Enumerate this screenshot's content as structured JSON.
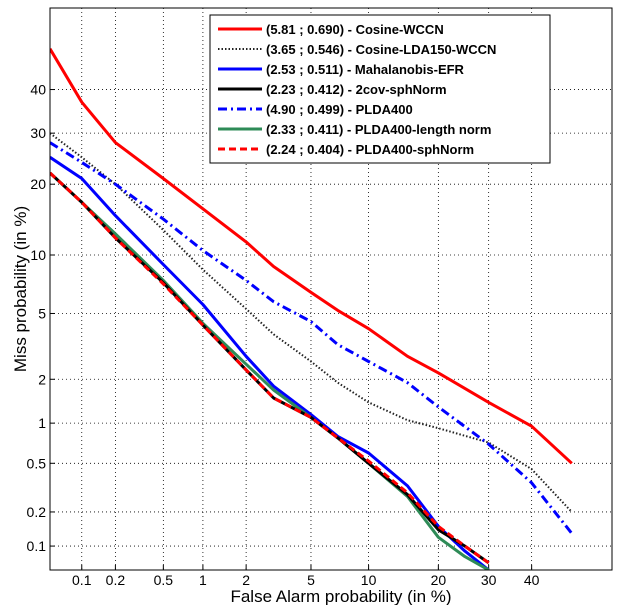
{
  "chart_data": {
    "type": "line",
    "xlabel": "False Alarm probability (in %)",
    "ylabel": "Miss probability (in %)",
    "x_scale": "probit",
    "y_scale": "probit",
    "xlim": [
      0.05,
      60
    ],
    "ylim": [
      0.06,
      60
    ],
    "x_ticks": [
      0.1,
      0.2,
      0.5,
      1,
      2,
      5,
      10,
      20,
      30,
      40
    ],
    "x_tick_labels": [
      "0.1",
      "0.2",
      "0.5",
      "1",
      "2",
      "5",
      "10",
      "20",
      "30",
      "40"
    ],
    "y_ticks": [
      0.1,
      0.2,
      0.5,
      1,
      2,
      5,
      10,
      20,
      30,
      40
    ],
    "y_tick_labels": [
      "0.1",
      "0.2",
      "0.5",
      "1",
      "2",
      "5",
      "10",
      "20",
      "30",
      "40"
    ],
    "grid": true,
    "legend_position": "top-right",
    "series": [
      {
        "name": "(5.81 ; 0.690) - Cosine-WCCN",
        "color": "#ff0000",
        "style": "solid",
        "x": [
          0.05,
          0.1,
          0.2,
          0.5,
          1,
          2,
          3,
          5,
          7,
          10,
          15,
          20,
          30,
          40,
          50
        ],
        "y": [
          50,
          37,
          28,
          21,
          16,
          11.5,
          8.8,
          6.5,
          5.2,
          4.1,
          2.8,
          2.2,
          1.4,
          0.95,
          0.5
        ]
      },
      {
        "name": "(3.65 ; 0.546) - Cosine-LDA150-WCCN",
        "color": "#222222",
        "style": "dotted",
        "x": [
          0.05,
          0.1,
          0.2,
          0.5,
          1,
          2,
          3,
          5,
          7,
          10,
          15,
          20,
          30,
          40,
          50
        ],
        "y": [
          30,
          25,
          20,
          13,
          8.5,
          5.3,
          3.8,
          2.6,
          1.9,
          1.4,
          1.05,
          0.92,
          0.72,
          0.45,
          0.2
        ]
      },
      {
        "name": "(2.53 ; 0.511) - Mahalanobis-EFR",
        "color": "#0000ff",
        "style": "solid",
        "x": [
          0.05,
          0.1,
          0.2,
          0.5,
          1,
          2,
          3,
          5,
          7,
          10,
          15,
          20,
          25,
          30
        ],
        "y": [
          25,
          21,
          15,
          9,
          5.6,
          2.8,
          1.8,
          1.15,
          0.8,
          0.6,
          0.33,
          0.15,
          0.09,
          0.06
        ]
      },
      {
        "name": "(2.23 ; 0.412) - 2cov-sphNorm",
        "color": "#000000",
        "style": "solid",
        "x": [
          0.05,
          0.1,
          0.2,
          0.5,
          1,
          2,
          3,
          5,
          7,
          10,
          15,
          20,
          25,
          30
        ],
        "y": [
          22,
          17,
          12,
          7.3,
          4.3,
          2.3,
          1.5,
          1.1,
          0.78,
          0.5,
          0.28,
          0.14,
          0.1,
          0.07
        ]
      },
      {
        "name": "(4.90 ; 0.499) - PLDA400",
        "color": "#0000ff",
        "style": "dashdot",
        "x": [
          0.05,
          0.1,
          0.2,
          0.5,
          1,
          2,
          3,
          5,
          7,
          10,
          15,
          20,
          30,
          40,
          50
        ],
        "y": [
          28,
          24,
          20,
          14.5,
          10.5,
          7.5,
          5.8,
          4.5,
          3.3,
          2.6,
          1.9,
          1.3,
          0.7,
          0.35,
          0.13
        ]
      },
      {
        "name": "(2.33 ; 0.411) - PLDA400-length norm",
        "color": "#2e8b57",
        "style": "solid",
        "x": [
          0.05,
          0.1,
          0.2,
          0.5,
          1,
          2,
          3,
          5,
          7,
          10,
          15,
          20,
          25,
          30
        ],
        "y": [
          22,
          17,
          12.5,
          7.5,
          4.4,
          2.5,
          1.7,
          1.1,
          0.78,
          0.5,
          0.27,
          0.12,
          0.08,
          0.06
        ]
      },
      {
        "name": "(2.24 ; 0.404) - PLDA400-sphNorm",
        "color": "#ff0000",
        "style": "dashed",
        "x": [
          0.05,
          0.1,
          0.2,
          0.5,
          1,
          2,
          3,
          5,
          7,
          10,
          15,
          20,
          25,
          30
        ],
        "y": [
          22,
          17,
          12,
          7.2,
          4.3,
          2.3,
          1.5,
          1.1,
          0.78,
          0.52,
          0.29,
          0.15,
          0.1,
          0.07
        ]
      }
    ]
  }
}
